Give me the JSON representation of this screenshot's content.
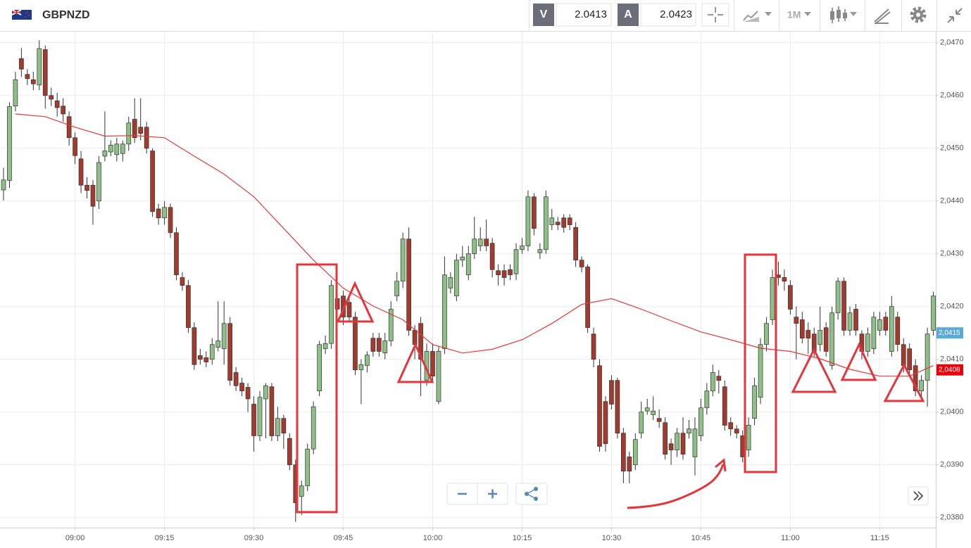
{
  "toolbar": {
    "symbol": "GBPNZD",
    "bid_label": "V",
    "bid": 2.0413,
    "ask_label": "A",
    "ask": 2.0423,
    "timeframe": "1M"
  },
  "chart_data": {
    "type": "candlestick",
    "x": [
      "08:48",
      "08:49",
      "08:50",
      "08:51",
      "08:52",
      "08:53",
      "08:54",
      "08:55",
      "08:56",
      "08:57",
      "08:58",
      "08:59",
      "09:00",
      "09:01",
      "09:02",
      "09:03",
      "09:04",
      "09:05",
      "09:06",
      "09:07",
      "09:08",
      "09:09",
      "09:10",
      "09:11",
      "09:12",
      "09:13",
      "09:14",
      "09:15",
      "09:16",
      "09:17",
      "09:18",
      "09:19",
      "09:20",
      "09:21",
      "09:22",
      "09:23",
      "09:24",
      "09:25",
      "09:26",
      "09:27",
      "09:28",
      "09:29",
      "09:30",
      "09:31",
      "09:32",
      "09:33",
      "09:34",
      "09:35",
      "09:36",
      "09:37",
      "09:38",
      "09:39",
      "09:40",
      "09:41",
      "09:42",
      "09:43",
      "09:44",
      "09:45",
      "09:46",
      "09:47",
      "09:48",
      "09:49",
      "09:50",
      "09:51",
      "09:52",
      "09:53",
      "09:54",
      "09:55",
      "09:56",
      "09:57",
      "09:58",
      "09:59",
      "10:00",
      "10:01",
      "10:02",
      "10:03",
      "10:04",
      "10:05",
      "10:06",
      "10:07",
      "10:08",
      "10:09",
      "10:10",
      "10:11",
      "10:12",
      "10:13",
      "10:14",
      "10:15",
      "10:16",
      "10:17",
      "10:18",
      "10:19",
      "10:20",
      "10:21",
      "10:22",
      "10:23",
      "10:24",
      "10:25",
      "10:26",
      "10:27",
      "10:28",
      "10:29",
      "10:30",
      "10:31",
      "10:32",
      "10:33",
      "10:34",
      "10:35",
      "10:36",
      "10:37",
      "10:38",
      "10:39",
      "10:40",
      "10:41",
      "10:42",
      "10:43",
      "10:44",
      "10:45",
      "10:46",
      "10:47",
      "10:48",
      "10:49",
      "10:50",
      "10:51",
      "10:52",
      "10:53",
      "10:54",
      "10:55",
      "10:56",
      "10:57",
      "10:58",
      "10:59",
      "11:00",
      "11:01",
      "11:02",
      "11:03",
      "11:04",
      "11:05",
      "11:06",
      "11:07",
      "11:08",
      "11:09",
      "11:10",
      "11:11",
      "11:12",
      "11:13",
      "11:14",
      "11:15",
      "11:16",
      "11:17",
      "11:18",
      "11:19",
      "11:20",
      "11:21",
      "11:22",
      "11:23",
      "11:24"
    ],
    "open": [
      2.04421,
      2.04439,
      2.0458,
      2.0467,
      2.0464,
      2.0463,
      2.0462,
      2.04687,
      2.046,
      2.0459,
      2.0458,
      2.0456,
      2.0452,
      2.0448,
      2.0443,
      2.0443,
      2.044,
      2.04485,
      2.04493,
      2.04488,
      2.0449,
      2.04508,
      2.04555,
      2.0454,
      2.0454,
      2.04495,
      2.04385,
      2.04368,
      2.04388,
      2.0434,
      2.04255,
      2.0424,
      2.0416,
      2.04107,
      2.04103,
      2.041,
      2.04123,
      2.0412,
      2.04168,
      2.04075,
      2.04055,
      2.04047,
      2.04015,
      2.03955,
      2.04025,
      2.04048,
      2.03955,
      2.03988,
      2.0395,
      2.039,
      2.0384,
      2.0386,
      2.0393,
      2.0404,
      2.0412,
      2.0413,
      2.04215,
      2.0422,
      2.04208,
      2.0418,
      2.0408,
      2.04088,
      2.0414,
      2.0414,
      2.04112,
      2.04135,
      2.0422,
      2.04248,
      2.04328,
      2.04155,
      2.04168,
      2.0406,
      2.04115,
      2.0402,
      2.0412,
      2.04235,
      2.0422,
      2.04288,
      2.0426,
      2.043,
      2.04315,
      2.04328,
      2.0432,
      2.04268,
      2.04268,
      2.0427,
      2.04262,
      2.04308,
      2.04315,
      2.04408,
      2.04302,
      2.04308,
      2.04355,
      2.0436,
      2.04368,
      2.04368,
      2.0435,
      2.04288,
      2.04275,
      2.04148,
      2.04088,
      2.0402,
      2.0406,
      2.0406,
      2.0396,
      2.03915,
      2.039,
      2.0396,
      2.04002,
      2.03995,
      2.03988,
      2.0398,
      2.0394,
      2.03928,
      2.0396,
      2.0396,
      2.03915,
      2.03955,
      2.04008,
      2.0404,
      2.04068,
      2.04048,
      2.0398,
      2.03968,
      2.03955,
      2.03928,
      2.03988,
      2.04028,
      2.04128,
      2.04175,
      2.0426,
      2.04255,
      2.0424,
      2.0418,
      2.04175,
      2.04155,
      2.04148,
      2.04128,
      2.0416,
      2.04088,
      2.04188,
      2.04248,
      2.04155,
      2.04195,
      2.04148,
      2.04115,
      2.0412,
      2.04155,
      2.0418,
      2.04115,
      2.0418,
      2.04128,
      2.0412,
      2.04088,
      2.0404,
      2.0406,
      2.04155
    ],
    "high": [
      2.04463,
      2.04587,
      2.04645,
      2.0469,
      2.0465,
      2.04645,
      2.04705,
      2.04695,
      2.04615,
      2.04605,
      2.04595,
      2.0457,
      2.0453,
      2.04495,
      2.04445,
      2.0444,
      2.04485,
      2.0457,
      2.04515,
      2.0452,
      2.04515,
      2.0456,
      2.04595,
      2.04595,
      2.0455,
      2.045,
      2.04395,
      2.044,
      2.04395,
      2.0435,
      2.04265,
      2.0425,
      2.0417,
      2.0412,
      2.04115,
      2.0414,
      2.0421,
      2.0421,
      2.0418,
      2.04085,
      2.04065,
      2.04055,
      2.0403,
      2.0404,
      2.04055,
      2.04055,
      2.0401,
      2.03995,
      2.0396,
      2.0391,
      2.0387,
      2.0394,
      2.0402,
      2.04135,
      2.04145,
      2.0425,
      2.04225,
      2.0423,
      2.04215,
      2.0419,
      2.041,
      2.04115,
      2.0415,
      2.0415,
      2.0415,
      2.0421,
      2.04265,
      2.0434,
      2.0435,
      2.04165,
      2.0418,
      2.0413,
      2.0413,
      2.04125,
      2.04295,
      2.04265,
      2.043,
      2.04315,
      2.04315,
      2.0437,
      2.0435,
      2.04365,
      2.0433,
      2.0428,
      2.0428,
      2.0428,
      2.0432,
      2.0433,
      2.0442,
      2.04415,
      2.0432,
      2.0442,
      2.04385,
      2.0437,
      2.04375,
      2.04375,
      2.0436,
      2.04295,
      2.0428,
      2.0416,
      2.041,
      2.0403,
      2.0407,
      2.04065,
      2.0397,
      2.03925,
      2.0396,
      2.0402,
      2.04025,
      2.0403,
      2.04005,
      2.0399,
      2.0395,
      2.0397,
      2.0399,
      2.03985,
      2.0399,
      2.04025,
      2.04055,
      2.0409,
      2.0408,
      2.0406,
      2.0399,
      2.03975,
      2.03965,
      2.0399,
      2.04065,
      2.0414,
      2.0418,
      2.0427,
      2.04285,
      2.0427,
      2.0425,
      2.042,
      2.0419,
      2.0417,
      2.0416,
      2.042,
      2.0417,
      2.042,
      2.04255,
      2.04255,
      2.042,
      2.04205,
      2.04155,
      2.0416,
      2.0419,
      2.0419,
      2.0419,
      2.0422,
      2.0419,
      2.0414,
      2.0413,
      2.041,
      2.0407,
      2.0416,
      2.04228
    ],
    "low": [
      2.04401,
      2.04425,
      2.0457,
      2.04635,
      2.0462,
      2.0461,
      2.0461,
      2.04575,
      2.0458,
      2.0456,
      2.0455,
      2.04505,
      2.0447,
      2.04415,
      2.04405,
      2.04355,
      2.04385,
      2.04475,
      2.04485,
      2.04475,
      2.04475,
      2.04495,
      2.0451,
      2.04515,
      2.0449,
      2.0437,
      2.04355,
      2.04355,
      2.0433,
      2.0425,
      2.0423,
      2.0415,
      2.0408,
      2.0409,
      2.04085,
      2.0409,
      2.04115,
      2.0409,
      2.0405,
      2.0404,
      2.0403,
      2.04,
      2.03925,
      2.03945,
      2.0395,
      2.03945,
      2.03945,
      2.0393,
      2.0389,
      2.03792,
      2.03805,
      2.0385,
      2.0392,
      2.0403,
      2.0411,
      2.0412,
      2.04185,
      2.04165,
      2.0417,
      2.0407,
      2.04015,
      2.04075,
      2.04105,
      2.04105,
      2.041,
      2.04125,
      2.0421,
      2.04235,
      2.04145,
      2.041,
      2.0403,
      2.0405,
      2.0406,
      2.04015,
      2.0411,
      2.04225,
      2.0421,
      2.04275,
      2.0425,
      2.0429,
      2.04305,
      2.04305,
      2.04255,
      2.0424,
      2.0424,
      2.0425,
      2.0425,
      2.043,
      2.04305,
      2.04335,
      2.0429,
      2.043,
      2.04345,
      2.04345,
      2.0434,
      2.04345,
      2.04275,
      2.04265,
      2.0415,
      2.04085,
      2.03925,
      2.03925,
      2.04005,
      2.0395,
      2.03865,
      2.03865,
      2.0389,
      2.0395,
      2.03995,
      2.03985,
      2.0397,
      2.0391,
      2.039,
      2.03915,
      2.0391,
      2.0395,
      2.0388,
      2.03945,
      2.03995,
      2.0403,
      2.04035,
      2.03965,
      2.03955,
      2.0395,
      2.03905,
      2.03915,
      2.03975,
      2.04015,
      2.04115,
      2.04165,
      2.0424,
      2.0423,
      2.04185,
      2.041,
      2.0413,
      2.0411,
      2.04105,
      2.04115,
      2.04105,
      2.0408,
      2.04175,
      2.04145,
      2.04145,
      2.04145,
      2.041,
      2.04105,
      2.0411,
      2.04145,
      2.04145,
      2.04105,
      2.04115,
      2.04075,
      2.0407,
      2.0403,
      2.04025,
      2.0401,
      2.04145
    ],
    "close": [
      2.0444,
      2.04579,
      2.0463,
      2.0465,
      2.04632,
      2.04622,
      2.04689,
      2.046,
      2.04593,
      2.04577,
      2.04565,
      2.0452,
      2.04486,
      2.0443,
      2.0442,
      2.0439,
      2.04473,
      2.04495,
      2.04506,
      2.04508,
      2.04508,
      2.04548,
      2.0452,
      2.04528,
      2.045,
      2.0438,
      2.04368,
      2.04388,
      2.0434,
      2.0426,
      2.0424,
      2.0416,
      2.0409,
      2.041,
      2.04095,
      2.04128,
      2.04135,
      2.04168,
      2.0406,
      2.0405,
      2.0404,
      2.04025,
      2.03955,
      2.04028,
      2.0405,
      2.03955,
      2.03988,
      2.0396,
      2.039,
      2.03828,
      2.0386,
      2.0393,
      2.0401,
      2.04128,
      2.0413,
      2.0424,
      2.04195,
      2.0418,
      2.0418,
      2.0408,
      2.0409,
      2.04108,
      2.04115,
      2.04115,
      2.04135,
      2.04195,
      2.04248,
      2.04328,
      2.04155,
      2.04128,
      2.041,
      2.04115,
      2.04068,
      2.04115,
      2.0426,
      2.04255,
      2.04288,
      2.04294,
      2.043,
      2.04328,
      2.04328,
      2.04315,
      2.0427,
      2.0426,
      2.04255,
      2.0426,
      2.04308,
      2.04315,
      2.04408,
      2.04348,
      2.04308,
      2.04408,
      2.04368,
      2.04355,
      2.0435,
      2.04355,
      2.04288,
      2.04275,
      2.0416,
      2.041,
      2.03935,
      2.0394,
      2.04015,
      2.0396,
      2.03888,
      2.03888,
      2.03948,
      2.04,
      2.04008,
      2.04002,
      2.03982,
      2.0392,
      2.03928,
      2.0396,
      2.0392,
      2.03968,
      2.03968,
      2.04008,
      2.0404,
      2.04075,
      2.0406,
      2.03975,
      2.03968,
      2.0396,
      2.03915,
      2.03975,
      2.0405,
      2.04128,
      2.04168,
      2.04255,
      2.04255,
      2.04248,
      2.04195,
      2.04168,
      2.0414,
      2.0414,
      2.04115,
      2.04155,
      2.04115,
      2.04188,
      2.04248,
      2.04155,
      2.04188,
      2.04155,
      2.04115,
      2.04148,
      2.0418,
      2.04175,
      2.04155,
      2.042,
      2.04128,
      2.04088,
      2.0408,
      2.0404,
      2.0406,
      2.04148,
      2.0422
    ],
    "up_color": "#8dbf86",
    "down_color": "#a23b2d",
    "ma": {
      "color": "#e03a3a",
      "x": [
        "08:50",
        "08:55",
        "09:00",
        "09:05",
        "09:10",
        "09:15",
        "09:20",
        "09:25",
        "09:30",
        "09:35",
        "09:40",
        "09:45",
        "09:50",
        "09:55",
        "10:00",
        "10:05",
        "10:10",
        "10:15",
        "10:20",
        "10:25",
        "10:30",
        "10:35",
        "10:40",
        "10:45",
        "10:50",
        "10:55",
        "11:00",
        "11:05",
        "11:10",
        "11:15",
        "11:20",
        "11:24"
      ],
      "values": [
        2.04565,
        2.0456,
        2.0454,
        2.04523,
        2.04524,
        2.0452,
        2.04485,
        2.04451,
        2.04408,
        2.04348,
        2.04288,
        2.04235,
        2.04201,
        2.04175,
        2.04128,
        2.04112,
        2.04119,
        2.04137,
        2.04168,
        2.04204,
        2.04215,
        2.04195,
        2.04173,
        2.04152,
        2.04137,
        2.04121,
        2.04115,
        2.04101,
        2.04081,
        2.04068,
        2.04068,
        2.04088
      ]
    },
    "ylim": [
      2.03781,
      2.04721
    ],
    "yticks": [
      {
        "value": 2.038,
        "label": "2,0380"
      },
      {
        "value": 2.039,
        "label": "2,0390"
      },
      {
        "value": 2.04,
        "label": "2,0400"
      },
      {
        "value": 2.041,
        "label": "2,0410"
      },
      {
        "value": 2.042,
        "label": "2,0420"
      },
      {
        "value": 2.043,
        "label": "2,0430"
      },
      {
        "value": 2.044,
        "label": "2,0440"
      },
      {
        "value": 2.045,
        "label": "2,0450"
      },
      {
        "value": 2.046,
        "label": "2,0460"
      },
      {
        "value": 2.047,
        "label": "2,0470"
      }
    ],
    "xticks": [
      "09:00",
      "09:15",
      "09:30",
      "09:45",
      "10:00",
      "10:15",
      "10:30",
      "10:45",
      "11:00",
      "11:15"
    ],
    "price_markers": [
      {
        "value": 2.0415,
        "label": "2,0415",
        "color": "#5aaad8"
      },
      {
        "value": 2.0408,
        "label": "2,0408",
        "color": "#e8000b"
      }
    ],
    "grid": true
  }
}
